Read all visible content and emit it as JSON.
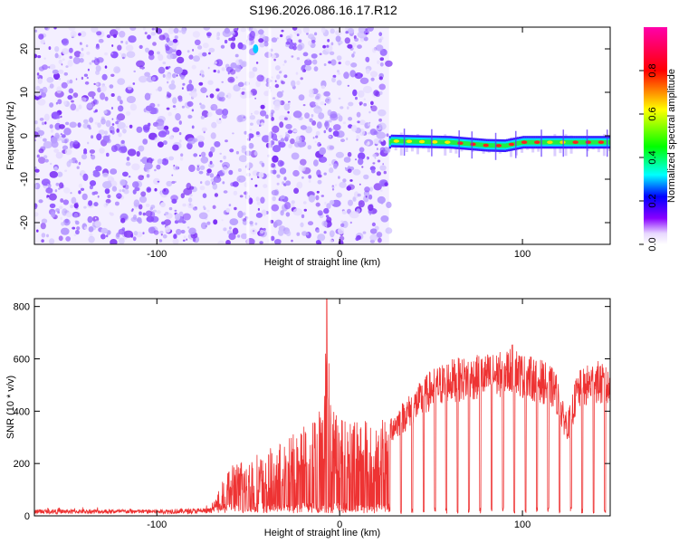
{
  "title": "S196.2026.086.16.17.R12",
  "chart_data": [
    {
      "type": "heatmap",
      "xlabel": "Height of straight line (km)",
      "ylabel": "Frequency (Hz)",
      "xlim": [
        -167,
        148
      ],
      "ylim": [
        -25,
        25
      ],
      "x_ticks": [
        -100,
        0,
        100
      ],
      "y_ticks": [
        -20,
        -10,
        0,
        10,
        20
      ],
      "colorbar": {
        "label": "Normalized spectral amplitude",
        "range": [
          0,
          1
        ],
        "ticks": [
          0.0,
          0.2,
          0.4,
          0.6,
          0.8
        ]
      },
      "regions": [
        {
          "x_range": [
            -167,
            27
          ],
          "description_value": "broadband noise, amplitude 0.05-0.15"
        },
        {
          "x_range": [
            27,
            148
          ],
          "line_frequency_hz": [
            {
              "x": 28,
              "f": -1.2
            },
            {
              "x": 60,
              "f": -1.5
            },
            {
              "x": 80,
              "f": -2.2
            },
            {
              "x": 90,
              "f": -2.3
            },
            {
              "x": 100,
              "f": -1.5
            },
            {
              "x": 148,
              "f": -1.5
            }
          ]
        }
      ]
    },
    {
      "type": "line",
      "xlabel": "Height of straight line (km)",
      "ylabel": "SNR (10 * v/v)",
      "xlim": [
        -167,
        148
      ],
      "ylim": [
        0,
        830
      ],
      "x_ticks": [
        -100,
        0,
        100
      ],
      "y_ticks": [
        0,
        200,
        400,
        600,
        800
      ],
      "series": [
        {
          "color": "#ee3333",
          "envelope": {
            "x": [
              -167,
              -100,
              -70,
              -60,
              -40,
              -30,
              -20,
              -10,
              -7,
              -5,
              0,
              10,
              20,
              30,
              40,
              45,
              50,
              60,
              70,
              80,
              90,
              95,
              100,
              110,
              118,
              122,
              125,
              130,
              140,
              148
            ],
            "y": [
              25,
              25,
              30,
              200,
              250,
              290,
              350,
              420,
              830,
              450,
              400,
              380,
              350,
              400,
              480,
              520,
              560,
              600,
              610,
              620,
              630,
              660,
              620,
              600,
              560,
              440,
              400,
              550,
              600,
              560
            ]
          }
        }
      ]
    }
  ]
}
